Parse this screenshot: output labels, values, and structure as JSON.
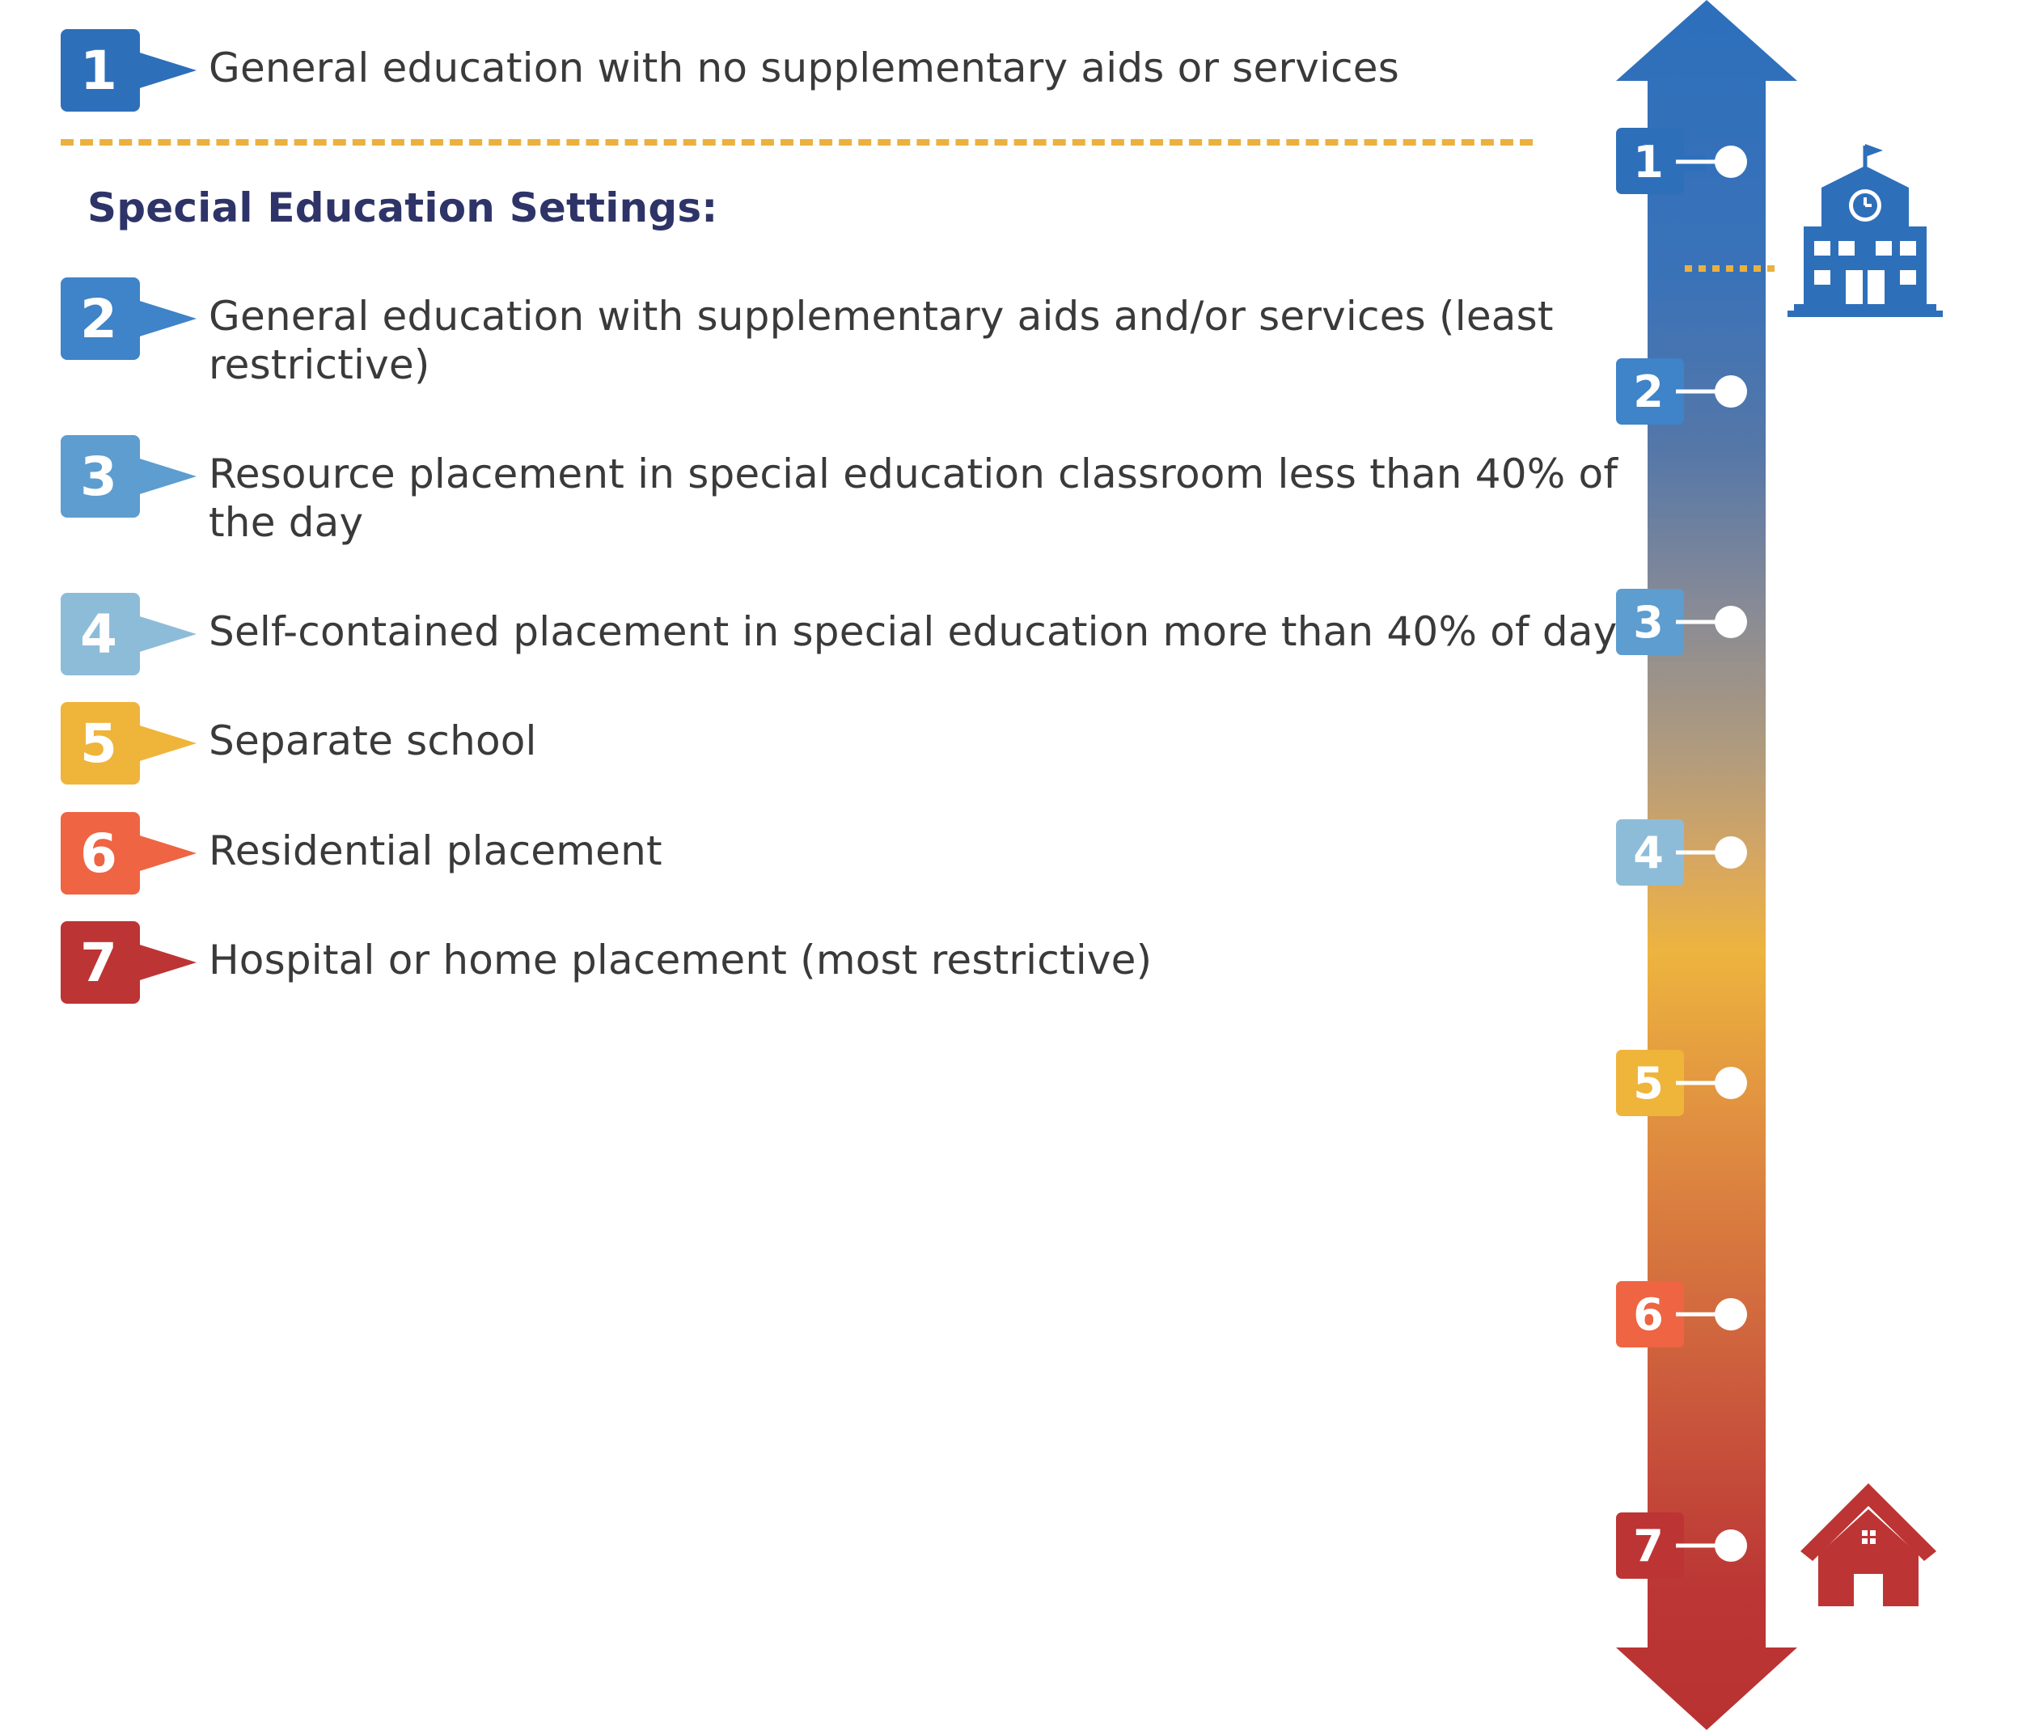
{
  "colors": {
    "1": "#2e6fba",
    "2": "#3f83c8",
    "3": "#5d9dd0",
    "4": "#8dbcd9",
    "5": "#efb43a",
    "6": "#ef6443",
    "7": "#bd3434",
    "heading": "#2e3468",
    "divider": "#ebb13f"
  },
  "general": {
    "number": "1",
    "label": "General education with no supplementary aids or services"
  },
  "section_heading": "Special Education Settings:",
  "settings": [
    {
      "number": "2",
      "label": "General education with supplementary aids and/or services (least restrictive)"
    },
    {
      "number": "3",
      "label": "Resource placement in special education classroom less than 40% of the day"
    },
    {
      "number": "4",
      "label": "Self-contained placement in special education more than 40% of day"
    },
    {
      "number": "5",
      "label": "Separate school"
    },
    {
      "number": "6",
      "label": "Residential placement"
    },
    {
      "number": "7",
      "label": "Hospital or home placement (most restrictive)"
    }
  ],
  "scale_markers": [
    "1",
    "2",
    "3",
    "4",
    "5",
    "6",
    "7"
  ],
  "icons": {
    "top": "school-building-icon",
    "bottom": "house-icon"
  }
}
